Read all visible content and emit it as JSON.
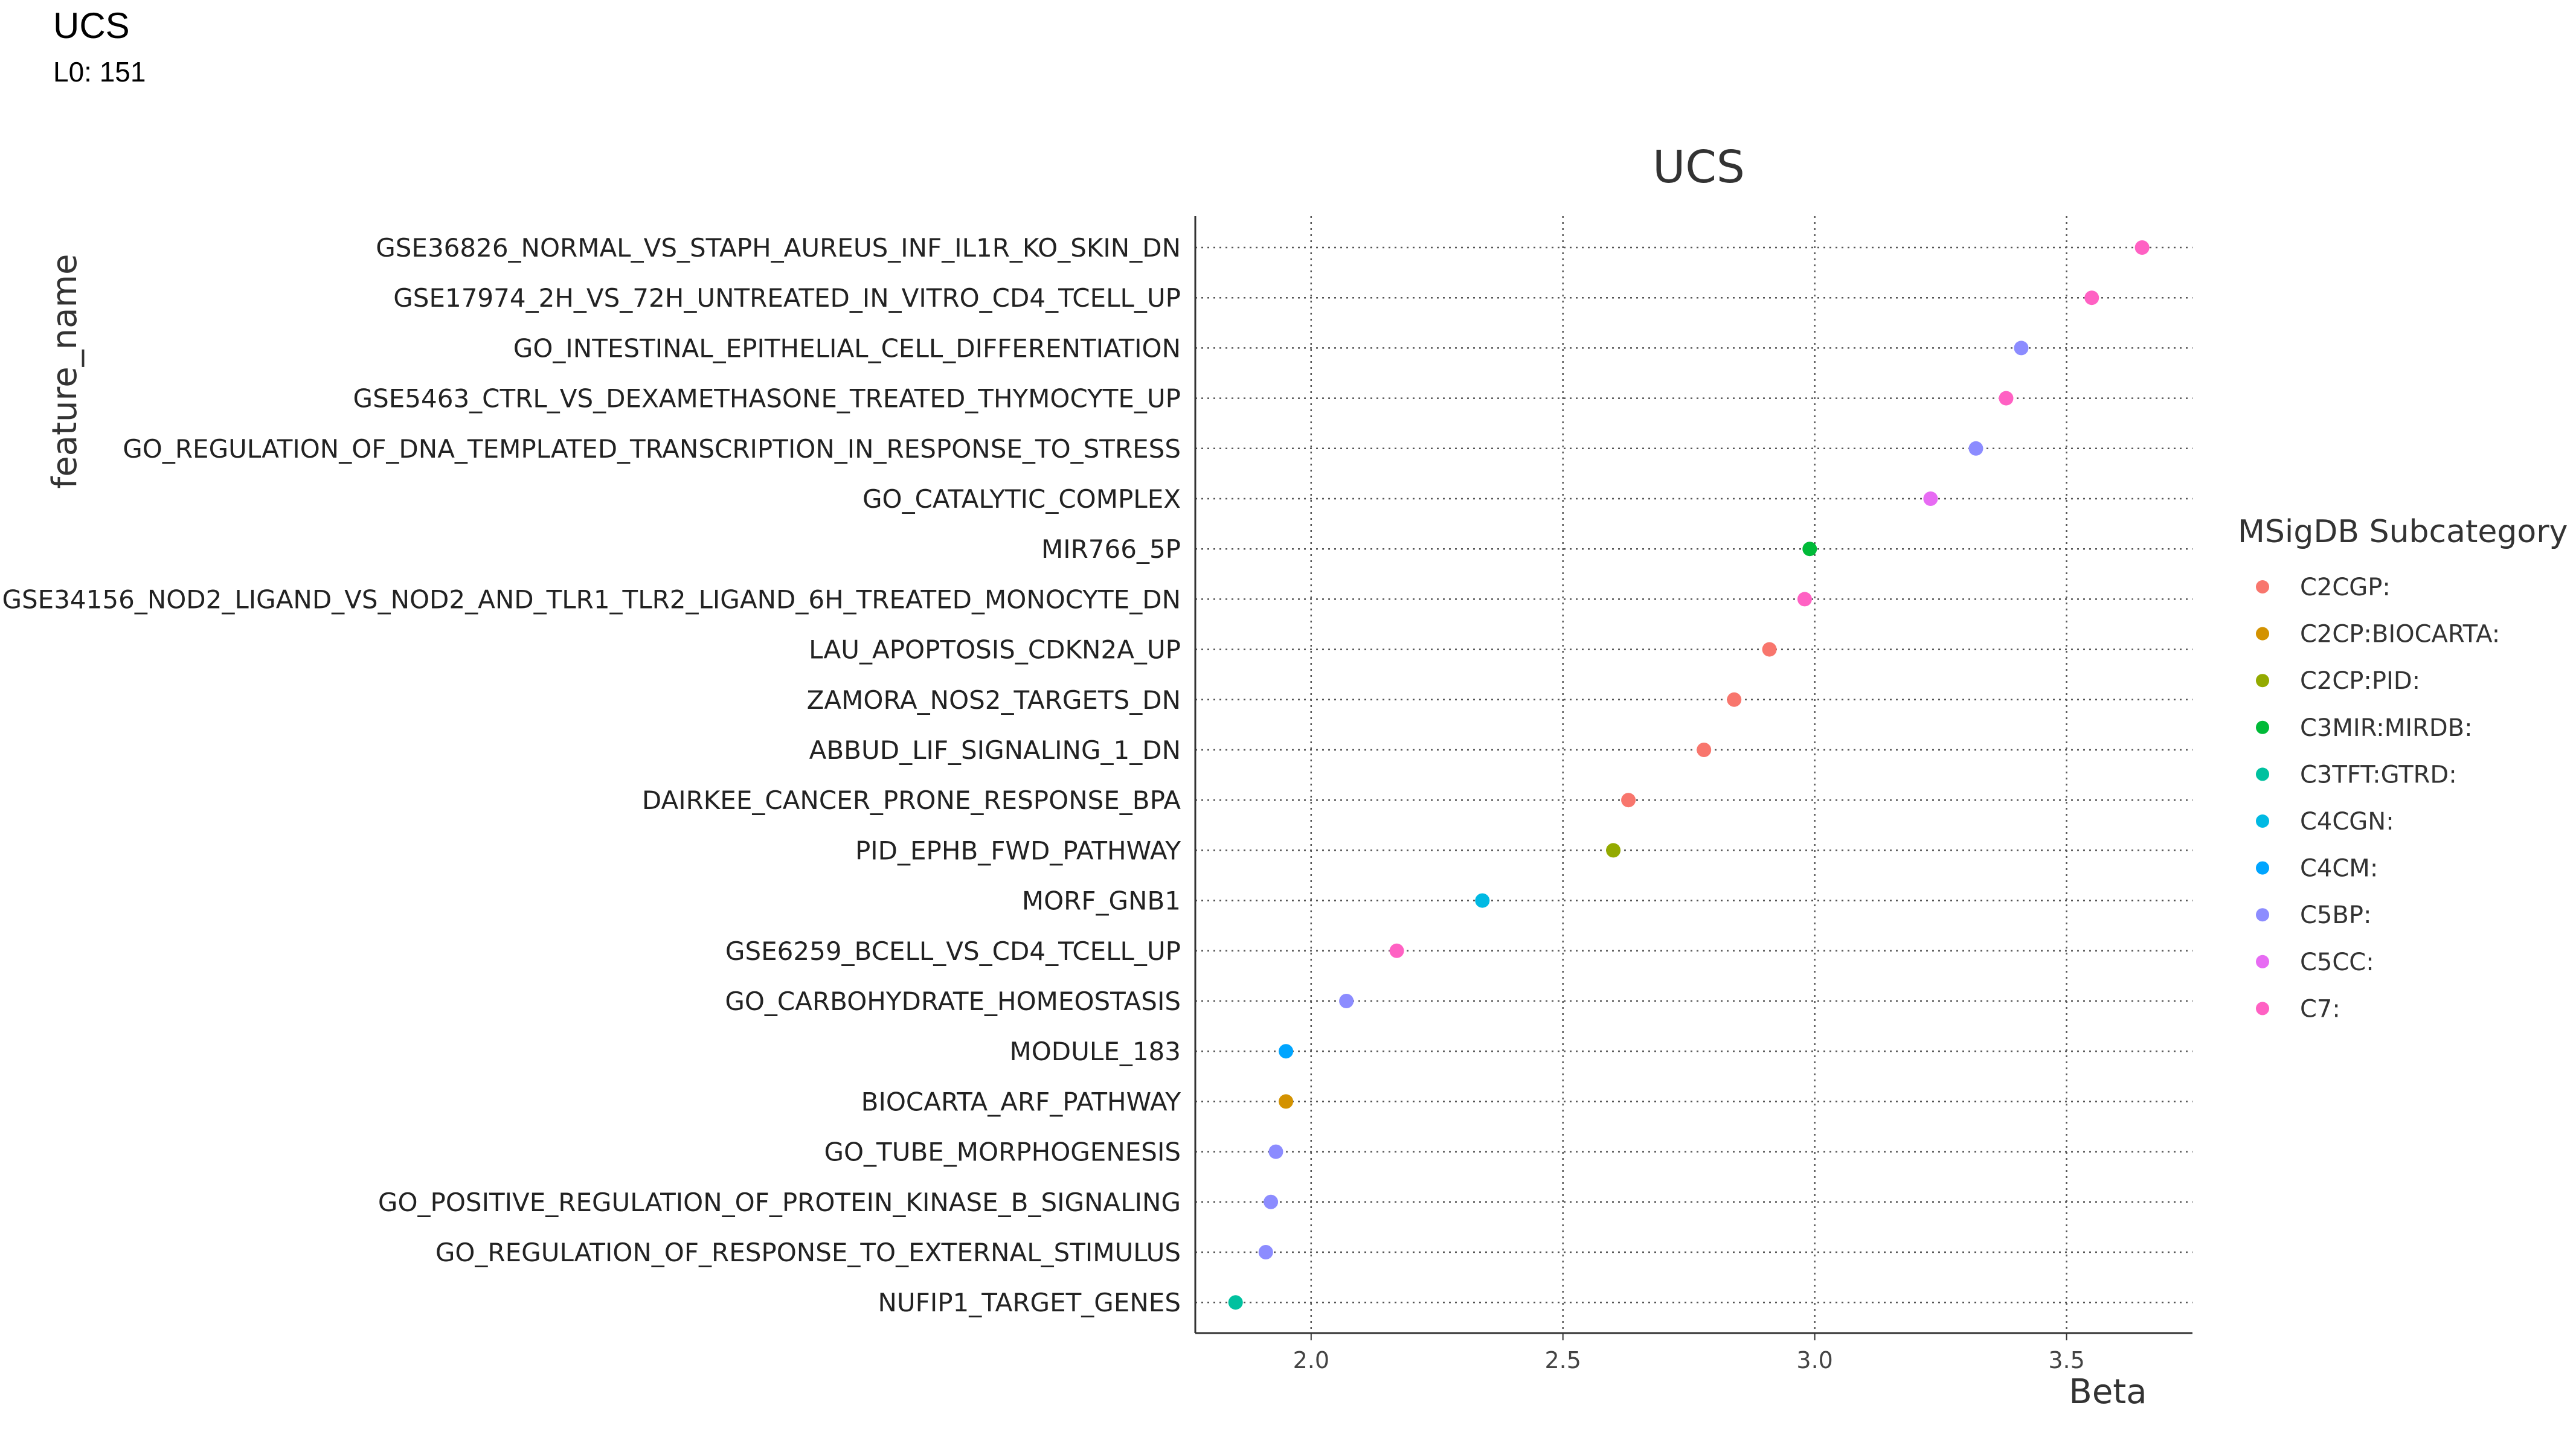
{
  "header": {
    "title": "UCS",
    "subtitle": "L0: 151"
  },
  "chart_data": {
    "type": "scatter",
    "title": "UCS",
    "xlabel": "Beta",
    "ylabel": "feature_name",
    "xlim": [
      1.77,
      3.75
    ],
    "xticks": [
      2.0,
      2.5,
      3.0,
      3.5
    ],
    "grid": true,
    "legend": {
      "title": "MSigDB Subcategory",
      "placement": "right",
      "entries": [
        {
          "label": "C2CGP:",
          "color": "#F8766D"
        },
        {
          "label": "C2CP:BIOCARTA:",
          "color": "#D39200"
        },
        {
          "label": "C2CP:PID:",
          "color": "#93AA00"
        },
        {
          "label": "C3MIR:MIRDB:",
          "color": "#00BA38"
        },
        {
          "label": "C3TFT:GTRD:",
          "color": "#00C19F"
        },
        {
          "label": "C4CGN:",
          "color": "#00B9E3"
        },
        {
          "label": "C4CM:",
          "color": "#00A5FF"
        },
        {
          "label": "C5BP:",
          "color": "#8C8CFF"
        },
        {
          "label": "C5CC:",
          "color": "#E76BF3"
        },
        {
          "label": "C7:",
          "color": "#FF61C3"
        }
      ]
    },
    "points": [
      {
        "name": "GSE36826_NORMAL_VS_STAPH_AUREUS_INF_IL1R_KO_SKIN_DN",
        "beta": 3.65,
        "category": "C7:"
      },
      {
        "name": "GSE17974_2H_VS_72H_UNTREATED_IN_VITRO_CD4_TCELL_UP",
        "beta": 3.55,
        "category": "C7:"
      },
      {
        "name": "GO_INTESTINAL_EPITHELIAL_CELL_DIFFERENTIATION",
        "beta": 3.41,
        "category": "C5BP:"
      },
      {
        "name": "GSE5463_CTRL_VS_DEXAMETHASONE_TREATED_THYMOCYTE_UP",
        "beta": 3.38,
        "category": "C7:"
      },
      {
        "name": "GO_REGULATION_OF_DNA_TEMPLATED_TRANSCRIPTION_IN_RESPONSE_TO_STRESS",
        "beta": 3.32,
        "category": "C5BP:"
      },
      {
        "name": "GO_CATALYTIC_COMPLEX",
        "beta": 3.23,
        "category": "C5CC:"
      },
      {
        "name": "MIR766_5P",
        "beta": 2.99,
        "category": "C3MIR:MIRDB:"
      },
      {
        "name": "GSE34156_NOD2_LIGAND_VS_NOD2_AND_TLR1_TLR2_LIGAND_6H_TREATED_MONOCYTE_DN",
        "beta": 2.98,
        "category": "C7:"
      },
      {
        "name": "LAU_APOPTOSIS_CDKN2A_UP",
        "beta": 2.91,
        "category": "C2CGP:"
      },
      {
        "name": "ZAMORA_NOS2_TARGETS_DN",
        "beta": 2.84,
        "category": "C2CGP:"
      },
      {
        "name": "ABBUD_LIF_SIGNALING_1_DN",
        "beta": 2.78,
        "category": "C2CGP:"
      },
      {
        "name": "DAIRKEE_CANCER_PRONE_RESPONSE_BPA",
        "beta": 2.63,
        "category": "C2CGP:"
      },
      {
        "name": "PID_EPHB_FWD_PATHWAY",
        "beta": 2.6,
        "category": "C2CP:PID:"
      },
      {
        "name": "MORF_GNB1",
        "beta": 2.34,
        "category": "C4CGN:"
      },
      {
        "name": "GSE6259_BCELL_VS_CD4_TCELL_UP",
        "beta": 2.17,
        "category": "C7:"
      },
      {
        "name": "GO_CARBOHYDRATE_HOMEOSTASIS",
        "beta": 2.07,
        "category": "C5BP:"
      },
      {
        "name": "MODULE_183",
        "beta": 1.95,
        "category": "C4CM:"
      },
      {
        "name": "BIOCARTA_ARF_PATHWAY",
        "beta": 1.95,
        "category": "C2CP:BIOCARTA:"
      },
      {
        "name": "GO_TUBE_MORPHOGENESIS",
        "beta": 1.93,
        "category": "C5BP:"
      },
      {
        "name": "GO_POSITIVE_REGULATION_OF_PROTEIN_KINASE_B_SIGNALING",
        "beta": 1.92,
        "category": "C5BP:"
      },
      {
        "name": "GO_REGULATION_OF_RESPONSE_TO_EXTERNAL_STIMULUS",
        "beta": 1.91,
        "category": "C5BP:"
      },
      {
        "name": "NUFIP1_TARGET_GENES",
        "beta": 1.85,
        "category": "C3TFT:GTRD:"
      }
    ]
  }
}
